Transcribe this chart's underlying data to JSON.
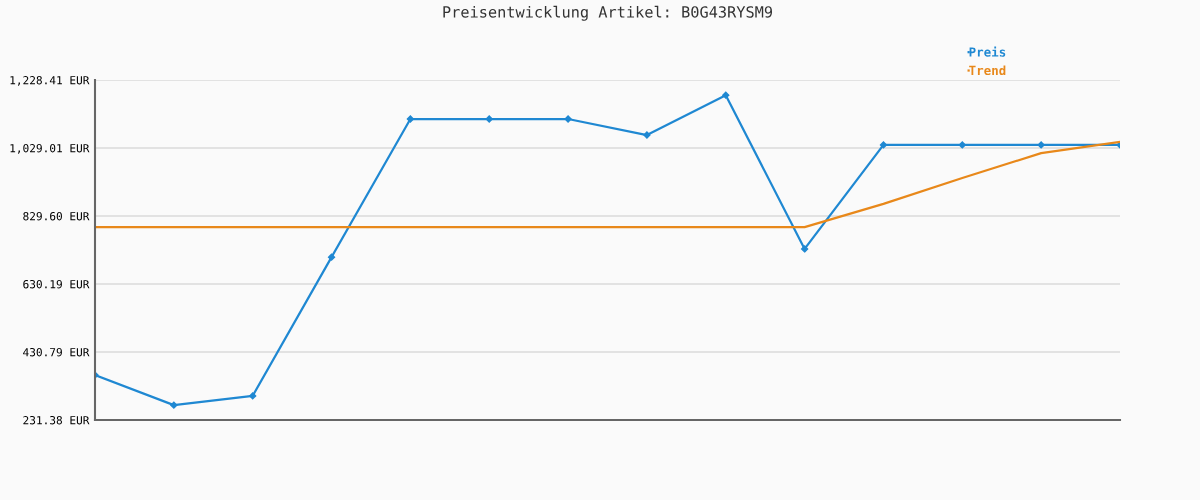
{
  "chart_data": {
    "type": "line",
    "title": "Preisentwicklung Artikel: B0G43RYSM9",
    "categories": [
      null,
      null,
      null,
      null,
      null,
      null,
      null,
      null,
      null,
      null,
      null,
      null,
      null,
      null
    ],
    "series": [
      {
        "name": "Preis",
        "color": "#1f88d2",
        "marker": "diamond",
        "values": [
          363,
          275,
          302,
          709,
          1114,
          1114,
          1114,
          1067,
          1184,
          733,
          1038,
          1038,
          1038,
          1038
        ]
      },
      {
        "name": "Trend",
        "color": "#e8881a",
        "marker": "none",
        "values": [
          797,
          797,
          797,
          797,
          797,
          797,
          797,
          797,
          797,
          797,
          865,
          941,
          1014,
          1047
        ]
      }
    ],
    "ylim": [
      231.38,
      1228.41
    ],
    "yticks": [
      {
        "value": 231.38,
        "label": "231.38 EUR"
      },
      {
        "value": 430.79,
        "label": "430.79 EUR"
      },
      {
        "value": 630.19,
        "label": "630.19 EUR"
      },
      {
        "value": 829.6,
        "label": "829.60 EUR"
      },
      {
        "value": 1029.01,
        "label": "1,029.01 EUR"
      },
      {
        "value": 1228.41,
        "label": "1,228.41 EUR"
      }
    ],
    "grid": "y",
    "legend": "top right",
    "line_style": "solid"
  }
}
